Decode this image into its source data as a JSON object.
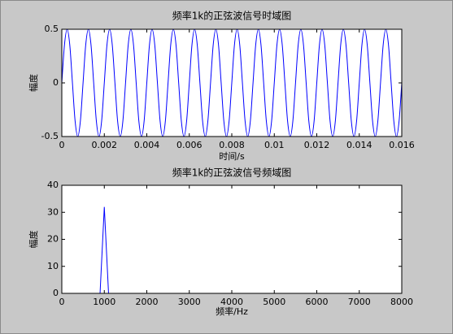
{
  "chart_data": [
    {
      "type": "line",
      "title": "频率1k的正弦波信号时域图",
      "xlabel": "时间/s",
      "ylabel": "幅度",
      "xlim": [
        0,
        0.016
      ],
      "xticks": [
        0,
        0.002,
        0.004,
        0.006,
        0.008,
        0.01,
        0.012,
        0.014,
        0.016
      ],
      "ylim": [
        -0.5,
        0.5
      ],
      "yticks": [
        -0.5,
        0,
        0.5
      ],
      "x": [
        0,
        0.000125,
        0.00025,
        0.000375,
        0.0005,
        0.000625,
        0.00075,
        0.000875,
        0.001,
        0.001125,
        0.00125,
        0.001375,
        0.0015,
        0.001625,
        0.00175,
        0.001875,
        0.002,
        0.002125,
        0.00225,
        0.002375,
        0.0025,
        0.002625,
        0.00275,
        0.002875,
        0.003,
        0.003125,
        0.00325,
        0.003375,
        0.0035,
        0.003625,
        0.00375,
        0.003875,
        0.004,
        0.004125,
        0.00425,
        0.004375,
        0.0045,
        0.004625,
        0.00475,
        0.004875,
        0.005,
        0.005125,
        0.00525,
        0.005375,
        0.0055,
        0.005625,
        0.00575,
        0.005875,
        0.006,
        0.006125,
        0.00625,
        0.006375,
        0.0065,
        0.006625,
        0.00675,
        0.006875,
        0.007,
        0.007125,
        0.00725,
        0.007375,
        0.0075,
        0.007625,
        0.00775,
        0.007875,
        0.008,
        0.008125,
        0.00825,
        0.008375,
        0.0085,
        0.008625,
        0.00875,
        0.008875,
        0.009,
        0.009125,
        0.00925,
        0.009375,
        0.0095,
        0.009625,
        0.00975,
        0.009875,
        0.01,
        0.010125,
        0.01025,
        0.010375,
        0.0105,
        0.010625,
        0.01075,
        0.010875,
        0.011,
        0.011125,
        0.01125,
        0.011375,
        0.0115,
        0.011625,
        0.01175,
        0.011875,
        0.012,
        0.012125,
        0.01225,
        0.012375,
        0.0125,
        0.012625,
        0.01275,
        0.012875,
        0.013,
        0.013125,
        0.01325,
        0.013375,
        0.0135,
        0.013625,
        0.01375,
        0.013875,
        0.014,
        0.014125,
        0.01425,
        0.014375,
        0.0145,
        0.014625,
        0.01475,
        0.014875,
        0.015,
        0.015125,
        0.01525,
        0.015375,
        0.0155,
        0.015625,
        0.01575,
        0.015875,
        0.016
      ],
      "series": [
        {
          "color": "#0000ff",
          "values": [
            0,
            0.354,
            0.5,
            0.354,
            0,
            -0.354,
            -0.5,
            -0.354,
            0,
            0.354,
            0.5,
            0.354,
            0,
            -0.354,
            -0.5,
            -0.354,
            0,
            0.354,
            0.5,
            0.354,
            0,
            -0.354,
            -0.5,
            -0.354,
            0,
            0.354,
            0.5,
            0.354,
            0,
            -0.354,
            -0.5,
            -0.354,
            0,
            0.354,
            0.5,
            0.354,
            0,
            -0.354,
            -0.5,
            -0.354,
            0,
            0.354,
            0.5,
            0.354,
            0,
            -0.354,
            -0.5,
            -0.354,
            0,
            0.354,
            0.5,
            0.354,
            0,
            -0.354,
            -0.5,
            -0.354,
            0,
            0.354,
            0.5,
            0.354,
            0,
            -0.354,
            -0.5,
            -0.354,
            0,
            0.354,
            0.5,
            0.354,
            0,
            -0.354,
            -0.5,
            -0.354,
            0,
            0.354,
            0.5,
            0.354,
            0,
            -0.354,
            -0.5,
            -0.354,
            0,
            0.354,
            0.5,
            0.354,
            0,
            -0.354,
            -0.5,
            -0.354,
            0,
            0.354,
            0.5,
            0.354,
            0,
            -0.354,
            -0.5,
            -0.354,
            0,
            0.354,
            0.5,
            0.354,
            0,
            -0.354,
            -0.5,
            -0.354,
            0,
            0.354,
            0.5,
            0.354,
            0,
            -0.354,
            -0.5,
            -0.354,
            0,
            0.354,
            0.5,
            0.354,
            0,
            -0.354,
            -0.5,
            -0.354,
            0,
            0.354,
            0.5,
            0.354,
            0,
            -0.354,
            -0.5,
            -0.354,
            0
          ]
        }
      ]
    },
    {
      "type": "line",
      "title": "频率1k的正弦波信号频域图",
      "xlabel": "频率/Hz",
      "ylabel": "幅度",
      "xlim": [
        0,
        8000
      ],
      "xticks": [
        0,
        1000,
        2000,
        3000,
        4000,
        5000,
        6000,
        7000,
        8000
      ],
      "ylim": [
        0,
        40
      ],
      "yticks": [
        0,
        10,
        20,
        30,
        40
      ],
      "x": [
        0,
        900,
        1000,
        1100,
        8000
      ],
      "series": [
        {
          "color": "#0000ff",
          "values": [
            0,
            0,
            32,
            0,
            0
          ]
        }
      ]
    }
  ]
}
